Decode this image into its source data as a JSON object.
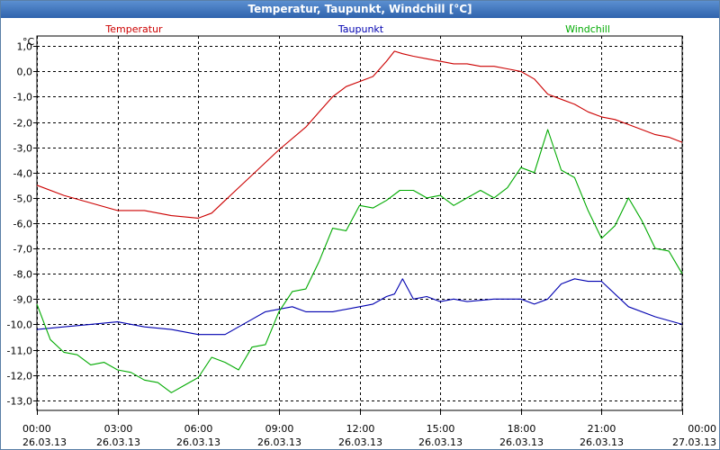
{
  "window": {
    "title": "Temperatur, Taupunkt, Windchill [°C]"
  },
  "chart_data": {
    "type": "line",
    "title": "Temperatur, Taupunkt, Windchill [°C]",
    "ylabel": "°C",
    "ylim": [
      -13.4,
      1.4
    ],
    "y_ticks": [
      1.0,
      0.0,
      -1.0,
      -2.0,
      -3.0,
      -4.0,
      -5.0,
      -6.0,
      -7.0,
      -8.0,
      -9.0,
      -10.0,
      -11.0,
      -12.0,
      -13.0
    ],
    "y_tick_labels": [
      "1,0",
      "0,0",
      "-1,0",
      "-2,0",
      "-3,0",
      "-4,0",
      "-5,0",
      "-6,0",
      "-7,0",
      "-8,0",
      "-9,0",
      "-10,0",
      "-11,0",
      "-12,0",
      "-13,0"
    ],
    "xlim": [
      0,
      24
    ],
    "x_ticks": [
      0,
      3,
      6,
      9,
      12,
      15,
      18,
      21,
      24
    ],
    "x_tick_labels": [
      {
        "time": "00:00",
        "date": "26.03.13"
      },
      {
        "time": "03:00",
        "date": "26.03.13"
      },
      {
        "time": "06:00",
        "date": "26.03.13"
      },
      {
        "time": "09:00",
        "date": "26.03.13"
      },
      {
        "time": "12:00",
        "date": "26.03.13"
      },
      {
        "time": "15:00",
        "date": "26.03.13"
      },
      {
        "time": "18:00",
        "date": "26.03.13"
      },
      {
        "time": "21:00",
        "date": "26.03.13"
      },
      {
        "time": "00:00",
        "date": "27.03.13"
      }
    ],
    "grid": true,
    "legend_position": "top",
    "series": [
      {
        "name": "Temperatur",
        "color": "#cc0000",
        "x": [
          0,
          1,
          2,
          3,
          3.5,
          4,
          5,
          6,
          6.5,
          7,
          8,
          9,
          10,
          10.5,
          11,
          11.5,
          12,
          12.5,
          13,
          13.3,
          13.6,
          14,
          14.5,
          15,
          15.5,
          16,
          16.5,
          17,
          17.5,
          18,
          18.5,
          19,
          19.5,
          20,
          20.5,
          21,
          21.5,
          22,
          22.5,
          23,
          23.5,
          24
        ],
        "values": [
          -4.5,
          -4.9,
          -5.2,
          -5.5,
          -5.5,
          -5.5,
          -5.7,
          -5.8,
          -5.6,
          -5.1,
          -4.1,
          -3.1,
          -2.2,
          -1.6,
          -1.0,
          -0.6,
          -0.4,
          -0.2,
          0.4,
          0.8,
          0.7,
          0.6,
          0.5,
          0.4,
          0.3,
          0.3,
          0.2,
          0.2,
          0.1,
          0.0,
          -0.3,
          -0.9,
          -1.1,
          -1.3,
          -1.6,
          -1.8,
          -1.9,
          -2.1,
          -2.3,
          -2.5,
          -2.6,
          -2.8
        ]
      },
      {
        "name": "Taupunkt",
        "color": "#0000b0",
        "x": [
          0,
          1,
          2,
          3,
          4,
          5,
          6,
          7,
          7.5,
          8,
          8.5,
          9,
          9.5,
          10,
          11,
          12,
          12.5,
          13,
          13.3,
          13.6,
          14,
          14.5,
          15,
          15.5,
          16,
          17,
          18,
          18.5,
          19,
          19.5,
          20,
          20.5,
          21,
          22,
          23,
          24
        ],
        "values": [
          -10.2,
          -10.1,
          -10.0,
          -9.9,
          -10.1,
          -10.2,
          -10.4,
          -10.4,
          -10.1,
          -9.8,
          -9.5,
          -9.4,
          -9.3,
          -9.5,
          -9.5,
          -9.3,
          -9.2,
          -8.9,
          -8.8,
          -8.2,
          -9.0,
          -8.9,
          -9.1,
          -9.0,
          -9.1,
          -9.0,
          -9.0,
          -9.2,
          -9.0,
          -8.4,
          -8.2,
          -8.3,
          -8.3,
          -9.3,
          -9.7,
          -10.0
        ]
      },
      {
        "name": "Windchill",
        "color": "#00aa00",
        "x": [
          0,
          0.5,
          1,
          1.5,
          2,
          2.5,
          3,
          3.5,
          4,
          4.5,
          5,
          5.5,
          6,
          6.5,
          7,
          7.5,
          8,
          8.5,
          9,
          9.5,
          10,
          10.5,
          11,
          11.5,
          12,
          12.5,
          13,
          13.5,
          14,
          14.5,
          15,
          15.5,
          16,
          16.5,
          17,
          17.5,
          18,
          18.5,
          19,
          19.5,
          20,
          20.5,
          21,
          21.5,
          22,
          22.5,
          23,
          23.5,
          24
        ],
        "values": [
          -9.2,
          -10.6,
          -11.1,
          -11.2,
          -11.6,
          -11.5,
          -11.8,
          -11.9,
          -12.2,
          -12.3,
          -12.7,
          -12.4,
          -12.1,
          -11.3,
          -11.5,
          -11.8,
          -10.9,
          -10.8,
          -9.5,
          -8.7,
          -8.6,
          -7.5,
          -6.2,
          -6.3,
          -5.3,
          -5.4,
          -5.1,
          -4.7,
          -4.7,
          -5.0,
          -4.9,
          -5.3,
          -5.0,
          -4.7,
          -5.0,
          -4.6,
          -3.8,
          -4.0,
          -2.3,
          -3.9,
          -4.2,
          -5.5,
          -6.6,
          -6.1,
          -5.0,
          -5.9,
          -7.0,
          -7.1,
          -8.0
        ]
      }
    ]
  }
}
